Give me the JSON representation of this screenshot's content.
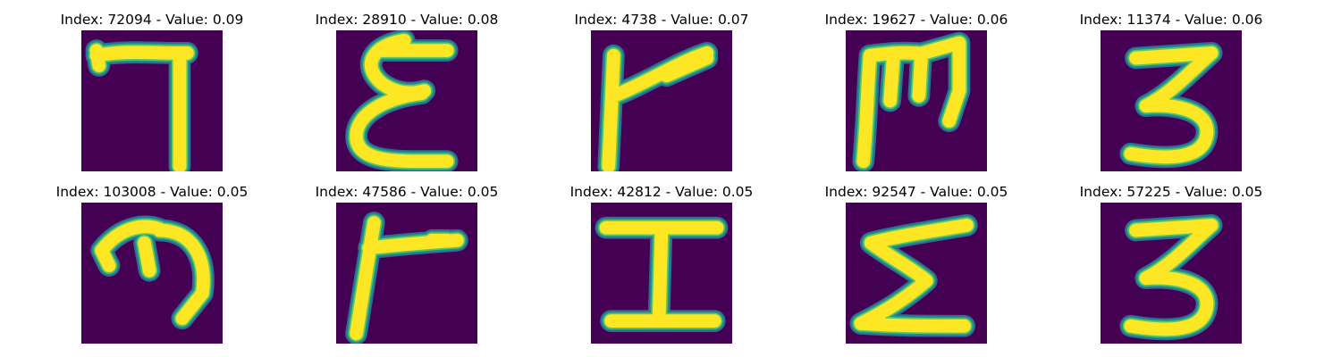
{
  "colors": {
    "background": "#440154",
    "edge_dark": "#31688e",
    "edge_mid": "#21918c",
    "edge_light": "#5ec962",
    "stroke": "#fde725"
  },
  "panels": [
    {
      "title": "Index: 72094 - Value: 0.09",
      "glyph": "flipped-seven"
    },
    {
      "title": "Index: 28910 - Value: 0.08",
      "glyph": "curly-epsilon"
    },
    {
      "title": "Index: 4738 - Value: 0.07",
      "glyph": "slanted-r"
    },
    {
      "title": "Index: 19627 - Value: 0.06",
      "glyph": "upright-m"
    },
    {
      "title": "Index: 11374 - Value: 0.06",
      "glyph": "three"
    },
    {
      "title": "Index: 103008 - Value: 0.05",
      "glyph": "rotated-m"
    },
    {
      "title": "Index: 47586 - Value: 0.05",
      "glyph": "r-shape"
    },
    {
      "title": "Index: 42812 - Value: 0.05",
      "glyph": "capital-i"
    },
    {
      "title": "Index: 92547 - Value: 0.05",
      "glyph": "sigma"
    },
    {
      "title": "Index: 57225 - Value: 0.05",
      "glyph": "three"
    }
  ]
}
